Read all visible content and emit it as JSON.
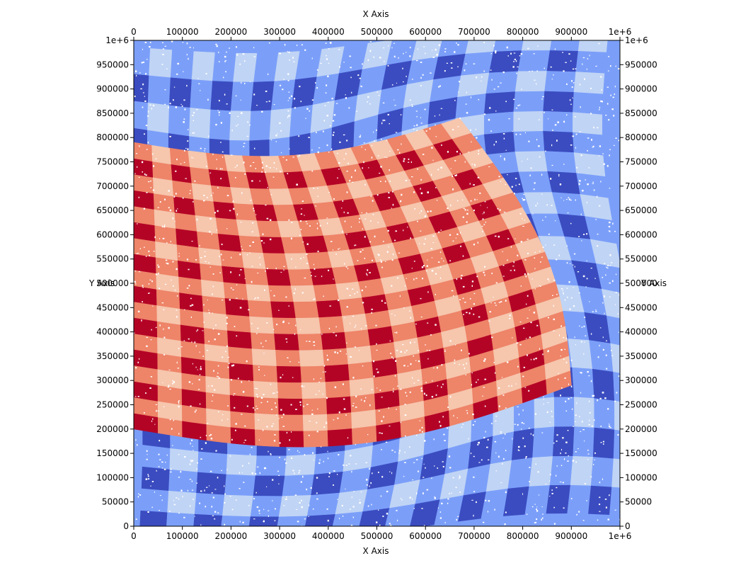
{
  "chart_data": {
    "type": "heatmap",
    "title": "",
    "x_axis": {
      "label": "X Axis",
      "range": [
        0,
        1000000
      ],
      "ticks": [
        "0",
        "100000",
        "200000",
        "300000",
        "400000",
        "500000",
        "600000",
        "700000",
        "800000",
        "900000",
        "1e+6"
      ]
    },
    "y_axis": {
      "label": "Y Axis",
      "range": [
        0,
        1000000
      ],
      "ticks": [
        "0",
        "50000",
        "100000",
        "150000",
        "200000",
        "250000",
        "300000",
        "350000",
        "400000",
        "450000",
        "500000",
        "550000",
        "600000",
        "650000",
        "700000",
        "750000",
        "800000",
        "850000",
        "900000",
        "950000",
        "1e+6"
      ]
    },
    "grid": false,
    "pattern": "distorted checkerboard of material cells",
    "inner_region": {
      "description": "warped rectangular region with warm colormap",
      "corners": [
        [
          0,
          790000
        ],
        [
          670000,
          800000
        ],
        [
          900000,
          290000
        ],
        [
          0,
          200000
        ]
      ],
      "colors": [
        "#b40426",
        "#ee8468",
        "#f6c6ad"
      ]
    },
    "outer_region": {
      "description": "surrounding swirled region with cool colormap",
      "colors": [
        "#3b4cc0",
        "#7b9ff9",
        "#c0d4f5"
      ]
    }
  }
}
